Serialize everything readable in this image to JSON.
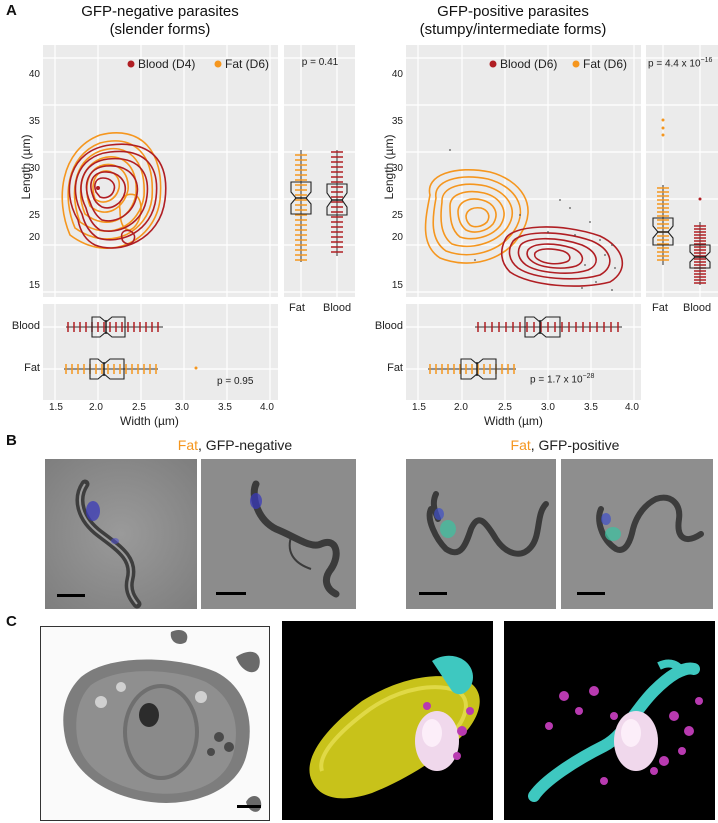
{
  "panelA": {
    "letter": "A",
    "left": {
      "title_line1": "GFP-negative parasites",
      "title_line2": "(slender forms)",
      "legend": [
        {
          "label": "Blood (D4)",
          "color": "#b01e23"
        },
        {
          "label": "Fat (D6)",
          "color": "#f5961e"
        }
      ],
      "ylabel": "Length (µm)",
      "xlabel": "Width  (µm)",
      "yticks": [
        "40",
        "35",
        "30",
        "25",
        "20",
        "15"
      ],
      "xticks": [
        "1.5",
        "2.0",
        "2.5",
        "3.0",
        "3.5",
        "4.0"
      ],
      "box_right_labels": [
        "Fat",
        "Blood"
      ],
      "box_bottom_labels": [
        "Blood",
        "Fat"
      ],
      "p_right": "p = 0.41",
      "p_bottom": "p = 0.95"
    },
    "right": {
      "title_line1": "GFP-positive parasites",
      "title_line2": "(stumpy/intermediate forms)",
      "legend": [
        {
          "label": "Blood (D6)",
          "color": "#b01e23"
        },
        {
          "label": "Fat (D6)",
          "color": "#f5961e"
        }
      ],
      "ylabel": "Length (µm)",
      "xlabel": "Width  (µm)",
      "yticks": [
        "40",
        "35",
        "30",
        "25",
        "20",
        "15"
      ],
      "xticks": [
        "1.5",
        "2.0",
        "2.5",
        "3.0",
        "3.5",
        "4.0"
      ],
      "box_right_labels": [
        "Fat",
        "Blood"
      ],
      "box_bottom_labels": [
        "Blood",
        "Fat"
      ],
      "p_right_base": "p = 4.4 x 10",
      "p_right_exp": "−16",
      "p_bottom_base": "p = 1.7 x 10",
      "p_bottom_exp": "−28"
    }
  },
  "chart_data": [
    {
      "type": "contour+boxplot",
      "title": "GFP-negative parasites (slender forms)",
      "xlabel": "Width (µm)",
      "ylabel": "Length (µm)",
      "xlim": [
        1.4,
        4.1
      ],
      "ylim": [
        13.5,
        41
      ],
      "series": [
        {
          "name": "Blood (D4)",
          "width_median": 2.1,
          "length_median": 24.5,
          "width_range": [
            1.7,
            2.7
          ],
          "length_range": [
            18.5,
            30
          ]
        },
        {
          "name": "Fat (D6)",
          "width_median": 2.05,
          "length_median": 24.8,
          "width_range": [
            1.65,
            2.6
          ],
          "length_range": [
            17.5,
            31
          ]
        }
      ],
      "p_length": "0.41",
      "p_width": "0.95"
    },
    {
      "type": "contour+boxplot",
      "title": "GFP-positive parasites (stumpy/intermediate forms)",
      "xlabel": "Width (µm)",
      "ylabel": "Length (µm)",
      "xlim": [
        1.4,
        4.1
      ],
      "ylim": [
        13.5,
        41
      ],
      "series": [
        {
          "name": "Blood (D6)",
          "width_median": 3.0,
          "length_median": 18.3,
          "width_range": [
            2.2,
            3.8
          ],
          "length_range": [
            15.5,
            25
          ]
        },
        {
          "name": "Fat (D6)",
          "width_median": 2.2,
          "length_median": 21.0,
          "width_range": [
            1.65,
            2.8
          ],
          "length_range": [
            16.5,
            33
          ]
        }
      ],
      "p_length": "4.4 x 10^-16",
      "p_width": "1.7 x 10^-28"
    }
  ],
  "panelB": {
    "letter": "B",
    "left_label_colored": "Fat",
    "left_label_rest": ", GFP-negative",
    "right_label_colored": "Fat",
    "right_label_rest": ", GFP-positive"
  },
  "panelC": {
    "letter": "C"
  },
  "colors": {
    "blood": "#b01e23",
    "fat": "#f5961e",
    "plot_bg": "#ebebeb"
  }
}
